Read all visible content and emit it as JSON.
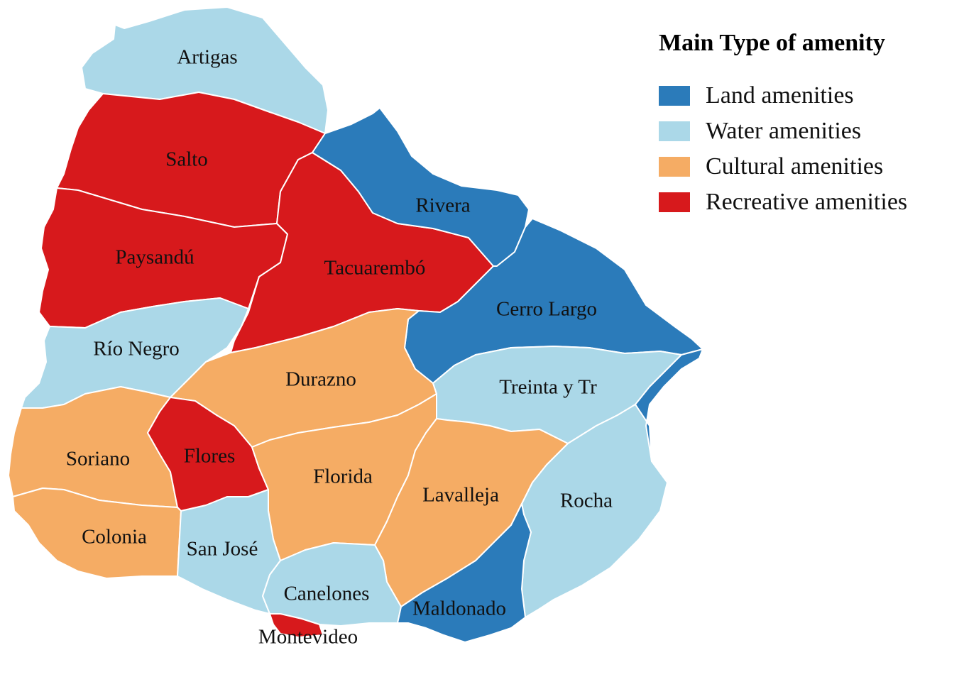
{
  "legend": {
    "title": "Main Type of amenity",
    "items": [
      {
        "key": "land",
        "label": "Land amenities",
        "color": "#2b7bba"
      },
      {
        "key": "water",
        "label": "Water amenities",
        "color": "#abd8e8"
      },
      {
        "key": "cultural",
        "label": "Cultural amenities",
        "color": "#f5ac64"
      },
      {
        "key": "recreative",
        "label": "Recreative amenities",
        "color": "#d7191c"
      }
    ]
  },
  "departments": [
    {
      "id": "artigas",
      "name": "Artigas",
      "type": "water"
    },
    {
      "id": "salto",
      "name": "Salto",
      "type": "recreative"
    },
    {
      "id": "paysandu",
      "name": "Paysandú",
      "type": "recreative"
    },
    {
      "id": "tacuarembo",
      "name": "Tacuarembó",
      "type": "recreative"
    },
    {
      "id": "rivera",
      "name": "Rivera",
      "type": "land"
    },
    {
      "id": "cerro-largo",
      "name": "Cerro Largo",
      "type": "land"
    },
    {
      "id": "rio-negro",
      "name": "Río Negro",
      "type": "water"
    },
    {
      "id": "durazno",
      "name": "Durazno",
      "type": "cultural"
    },
    {
      "id": "treinta-y-tres",
      "name": "Treinta y Tr",
      "type": "water"
    },
    {
      "id": "soriano",
      "name": "Soriano",
      "type": "cultural"
    },
    {
      "id": "flores",
      "name": "Flores",
      "type": "recreative"
    },
    {
      "id": "florida",
      "name": "Florida",
      "type": "cultural"
    },
    {
      "id": "lavalleja",
      "name": "Lavalleja",
      "type": "cultural"
    },
    {
      "id": "rocha",
      "name": "Rocha",
      "type": "water"
    },
    {
      "id": "colonia",
      "name": "Colonia",
      "type": "cultural"
    },
    {
      "id": "san-jose",
      "name": "San José",
      "type": "water"
    },
    {
      "id": "canelones",
      "name": "Canelones",
      "type": "water"
    },
    {
      "id": "maldonado",
      "name": "Maldonado",
      "type": "land"
    },
    {
      "id": "montevideo",
      "name": "Montevideo",
      "type": "recreative"
    }
  ]
}
